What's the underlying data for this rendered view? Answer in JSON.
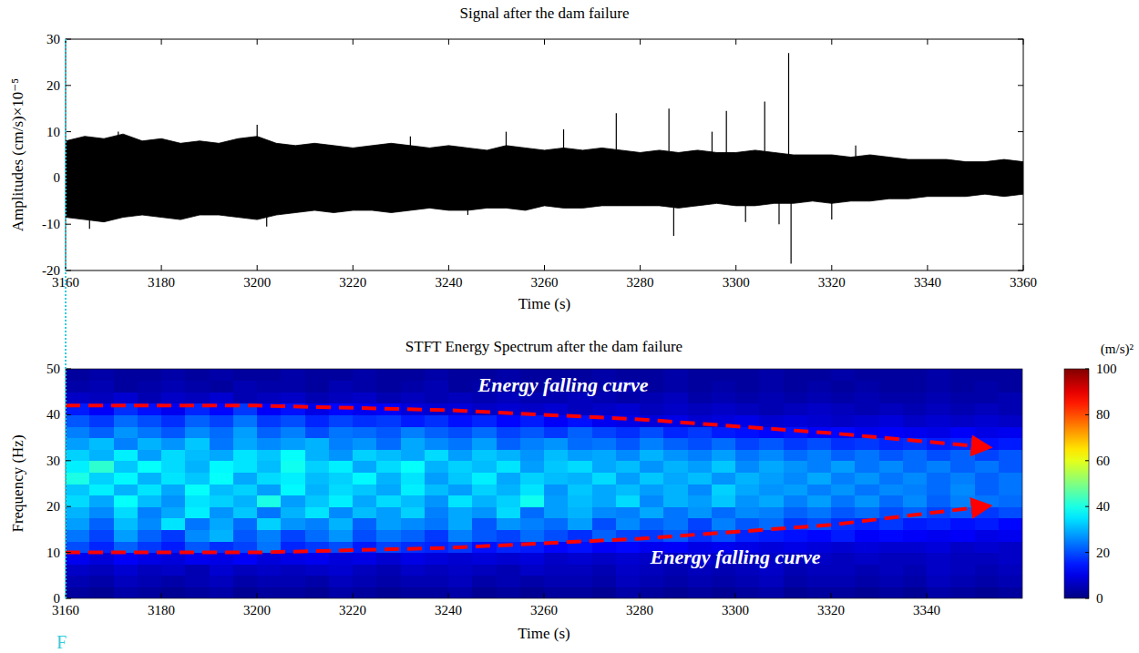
{
  "panel_label": "F",
  "chart_data": [
    {
      "type": "band",
      "title": "Signal after the dam failure",
      "x_label": "Time (s)",
      "y_label": "Amplitudes (cm/s)×10⁻⁵",
      "color": "#000000",
      "xlim": [
        3160,
        3360
      ],
      "xticks": [
        3160,
        3180,
        3200,
        3220,
        3240,
        3260,
        3280,
        3300,
        3320,
        3340,
        3360
      ],
      "ylim": [
        -20,
        30
      ],
      "yticks": [
        -20,
        -10,
        0,
        10,
        20,
        30
      ],
      "grid": false,
      "x": [
        3160,
        3164,
        3168,
        3172,
        3176,
        3180,
        3184,
        3188,
        3192,
        3196,
        3200,
        3204,
        3208,
        3212,
        3216,
        3220,
        3224,
        3228,
        3232,
        3236,
        3240,
        3244,
        3248,
        3252,
        3256,
        3260,
        3264,
        3268,
        3272,
        3276,
        3280,
        3284,
        3288,
        3292,
        3296,
        3300,
        3304,
        3308,
        3312,
        3316,
        3320,
        3324,
        3328,
        3332,
        3336,
        3340,
        3344,
        3348,
        3352,
        3356,
        3360
      ],
      "upper": [
        8,
        9,
        8.5,
        9.5,
        8,
        8.5,
        7.5,
        8,
        7.5,
        8.5,
        9,
        7.5,
        7,
        7.5,
        7,
        6.5,
        7,
        7.5,
        7,
        6.5,
        7,
        6.5,
        6,
        7,
        6.5,
        6,
        6.5,
        6,
        6.5,
        6,
        5.5,
        6,
        5.5,
        6,
        5.5,
        5.5,
        6,
        5.5,
        5,
        5,
        5,
        4.5,
        5,
        4.5,
        4,
        4,
        4,
        3.5,
        3.5,
        4,
        3.5
      ],
      "lower": [
        -8.5,
        -9,
        -9.5,
        -8.5,
        -8,
        -8.5,
        -9,
        -8,
        -8,
        -8.5,
        -9,
        -8,
        -7.5,
        -7,
        -7.5,
        -7,
        -7,
        -7.5,
        -7,
        -6.5,
        -7,
        -7,
        -6.5,
        -6.5,
        -7,
        -6,
        -6.5,
        -6.5,
        -6,
        -6,
        -6,
        -6,
        -6.5,
        -6,
        -5.5,
        -6,
        -6,
        -5.5,
        -5.5,
        -5,
        -5.5,
        -5,
        -5,
        -4.5,
        -4.5,
        -4,
        -4,
        -4,
        -3.5,
        -4,
        -3.5
      ],
      "spikes": {
        "x": [
          3165,
          3171,
          3200,
          3202,
          3232,
          3244,
          3252,
          3264,
          3275,
          3286,
          3287,
          3295,
          3298,
          3302,
          3306,
          3309,
          3311,
          3311.5,
          3320,
          3325
        ],
        "y": [
          -11,
          10,
          11.5,
          -10.5,
          9,
          -8,
          10,
          10.5,
          14,
          15,
          -12.5,
          10,
          14.5,
          -9.5,
          16.5,
          -10,
          27,
          -18.5,
          -9,
          7
        ]
      }
    },
    {
      "type": "heatmap",
      "title": "STFT Energy Spectrum after the dam failure",
      "x_label": "Time (s)",
      "y_label": "Frequency (Hz)",
      "xlim": [
        3160,
        3360
      ],
      "xticks": [
        3160,
        3180,
        3200,
        3220,
        3240,
        3260,
        3280,
        3300,
        3320,
        3340
      ],
      "ylim": [
        0,
        50
      ],
      "yticks": [
        0,
        10,
        20,
        30,
        40,
        50
      ],
      "grid": false,
      "x_bins": [
        3160,
        3165,
        3170,
        3175,
        3180,
        3185,
        3190,
        3195,
        3200,
        3205,
        3210,
        3215,
        3220,
        3225,
        3230,
        3235,
        3240,
        3245,
        3250,
        3255,
        3260,
        3265,
        3270,
        3275,
        3280,
        3285,
        3290,
        3295,
        3300,
        3305,
        3310,
        3315,
        3320,
        3325,
        3330,
        3335,
        3340,
        3345,
        3350,
        3355,
        3360
      ],
      "y_bins": [
        0,
        2.5,
        5,
        7.5,
        10,
        12.5,
        15,
        17.5,
        20,
        22.5,
        25,
        27.5,
        30,
        32.5,
        35,
        37.5,
        40,
        42.5,
        45,
        47.5,
        50
      ],
      "cells": [
        [
          3,
          2,
          4,
          3,
          2,
          3,
          4,
          2,
          3,
          3,
          2,
          4,
          3,
          2,
          3,
          3,
          4,
          2,
          3,
          2,
          3,
          3,
          2,
          4,
          3,
          2,
          3,
          2,
          3,
          4,
          2,
          3,
          3,
          2,
          3,
          2,
          4,
          3,
          2,
          3
        ],
        [
          5,
          4,
          6,
          5,
          4,
          5,
          6,
          4,
          5,
          5,
          4,
          6,
          5,
          4,
          5,
          5,
          6,
          4,
          5,
          4,
          5,
          5,
          4,
          6,
          5,
          4,
          5,
          4,
          5,
          6,
          4,
          5,
          5,
          4,
          5,
          4,
          6,
          5,
          4,
          5
        ],
        [
          7,
          6,
          8,
          6,
          7,
          5,
          8,
          6,
          7,
          6,
          7,
          8,
          6,
          5,
          7,
          6,
          7,
          6,
          5,
          7,
          6,
          6,
          5,
          7,
          6,
          5,
          6,
          5,
          6,
          7,
          5,
          6,
          6,
          5,
          6,
          5,
          7,
          6,
          5,
          6
        ],
        [
          11,
          9,
          12,
          10,
          9,
          11,
          10,
          12,
          9,
          10,
          11,
          9,
          10,
          8,
          10,
          9,
          8,
          9,
          8,
          9,
          7,
          8,
          7,
          8,
          7,
          6,
          8,
          7,
          6,
          7,
          6,
          7,
          6,
          7,
          6,
          6,
          7,
          6,
          6,
          7
        ],
        [
          20,
          16,
          22,
          18,
          15,
          21,
          17,
          19,
          24,
          16,
          18,
          20,
          15,
          19,
          17,
          16,
          18,
          14,
          16,
          15,
          13,
          14,
          12,
          13,
          11,
          12,
          10,
          11,
          10,
          9,
          10,
          9,
          8,
          9,
          8,
          8,
          9,
          7,
          8,
          7
        ],
        [
          24,
          19,
          28,
          22,
          18,
          26,
          30,
          21,
          25,
          19,
          23,
          27,
          20,
          24,
          22,
          18,
          25,
          21,
          19,
          23,
          20,
          17,
          22,
          19,
          18,
          21,
          17,
          20,
          16,
          15,
          14,
          13,
          15,
          12,
          13,
          12,
          11,
          12,
          10,
          11
        ],
        [
          28,
          22,
          31,
          26,
          35,
          24,
          29,
          23,
          33,
          27,
          25,
          30,
          22,
          28,
          26,
          24,
          29,
          21,
          27,
          25,
          23,
          28,
          20,
          26,
          22,
          24,
          19,
          25,
          21,
          23,
          18,
          20,
          17,
          16,
          18,
          15,
          16,
          14,
          15,
          13
        ],
        [
          30,
          26,
          34,
          25,
          29,
          36,
          27,
          32,
          24,
          30,
          35,
          26,
          31,
          28,
          33,
          25,
          29,
          27,
          34,
          23,
          28,
          30,
          26,
          25,
          29,
          24,
          27,
          23,
          26,
          25,
          22,
          24,
          21,
          23,
          20,
          22,
          19,
          21,
          18,
          20
        ],
        [
          34,
          29,
          38,
          31,
          27,
          35,
          33,
          30,
          40,
          28,
          32,
          36,
          29,
          34,
          31,
          27,
          35,
          30,
          33,
          39,
          28,
          31,
          29,
          34,
          26,
          30,
          28,
          32,
          27,
          29,
          25,
          28,
          24,
          27,
          23,
          26,
          22,
          25,
          24,
          23
        ],
        [
          32,
          36,
          30,
          35,
          29,
          38,
          31,
          33,
          28,
          37,
          30,
          34,
          32,
          29,
          36,
          31,
          28,
          33,
          30,
          35,
          27,
          32,
          29,
          31,
          28,
          30,
          26,
          33,
          29,
          27,
          28,
          25,
          27,
          24,
          26,
          25,
          23,
          26,
          22,
          24
        ],
        [
          40,
          33,
          37,
          30,
          35,
          32,
          38,
          29,
          34,
          36,
          31,
          33,
          37,
          30,
          35,
          28,
          32,
          36,
          29,
          33,
          31,
          30,
          34,
          28,
          32,
          29,
          31,
          27,
          30,
          28,
          26,
          29,
          25,
          27,
          24,
          26,
          23,
          25,
          22,
          24
        ],
        [
          36,
          42,
          32,
          38,
          34,
          30,
          37,
          35,
          31,
          39,
          33,
          36,
          29,
          34,
          38,
          30,
          33,
          31,
          35,
          28,
          32,
          34,
          29,
          31,
          27,
          30,
          28,
          32,
          26,
          29,
          27,
          25,
          28,
          24,
          26,
          23,
          25,
          22,
          24,
          21
        ],
        [
          33,
          30,
          36,
          28,
          34,
          31,
          29,
          35,
          32,
          38,
          30,
          27,
          33,
          31,
          29,
          34,
          28,
          32,
          30,
          27,
          31,
          28,
          29,
          26,
          30,
          27,
          25,
          28,
          24,
          26,
          23,
          25,
          22,
          24,
          21,
          23,
          20,
          22,
          19,
          21
        ],
        [
          28,
          31,
          25,
          30,
          27,
          32,
          24,
          29,
          26,
          28,
          30,
          25,
          27,
          23,
          29,
          26,
          24,
          28,
          22,
          25,
          27,
          23,
          24,
          21,
          25,
          22,
          20,
          23,
          19,
          21,
          18,
          20,
          17,
          18,
          16,
          17,
          15,
          16,
          14,
          15
        ],
        [
          25,
          22,
          27,
          24,
          21,
          26,
          23,
          28,
          22,
          25,
          20,
          24,
          23,
          21,
          25,
          22,
          20,
          23,
          19,
          21,
          18,
          22,
          19,
          17,
          20,
          16,
          18,
          15,
          14,
          13,
          14,
          12,
          13,
          11,
          12,
          11,
          10,
          12,
          10,
          11
        ],
        [
          21,
          18,
          23,
          20,
          17,
          22,
          19,
          24,
          18,
          20,
          16,
          19,
          17,
          18,
          15,
          17,
          14,
          16,
          13,
          15,
          12,
          14,
          11,
          10,
          9,
          10,
          8,
          9,
          10,
          8,
          9,
          8,
          7,
          8,
          9,
          7,
          8,
          7,
          8,
          7
        ],
        [
          15,
          12,
          17,
          14,
          11,
          16,
          13,
          18,
          12,
          14,
          10,
          13,
          11,
          12,
          9,
          8,
          9,
          7,
          8,
          7,
          8,
          6,
          7,
          8,
          6,
          7,
          6,
          7,
          6,
          5,
          6,
          7,
          6,
          5,
          6,
          5,
          6,
          5,
          6,
          5
        ],
        [
          7,
          6,
          8,
          5,
          7,
          6,
          8,
          5,
          6,
          7,
          5,
          6,
          7,
          5,
          6,
          5,
          6,
          5,
          6,
          5,
          5,
          6,
          5,
          4,
          5,
          6,
          4,
          5,
          4,
          5,
          4,
          5,
          4,
          5,
          4,
          4,
          5,
          4,
          4,
          5
        ],
        [
          4,
          5,
          3,
          4,
          5,
          4,
          3,
          5,
          4,
          4,
          3,
          5,
          4,
          3,
          4,
          5,
          3,
          4,
          4,
          3,
          4,
          3,
          4,
          5,
          3,
          4,
          3,
          4,
          3,
          4,
          3,
          4,
          3,
          4,
          3,
          3,
          4,
          3,
          4,
          3
        ],
        [
          3,
          4,
          3,
          3,
          4,
          3,
          4,
          3,
          3,
          4,
          3,
          3,
          4,
          3,
          3,
          4,
          3,
          3,
          4,
          3,
          3,
          3,
          4,
          3,
          3,
          4,
          3,
          3,
          3,
          4,
          3,
          3,
          4,
          3,
          3,
          3,
          4,
          3,
          3,
          3
        ]
      ],
      "colorbar": {
        "range": [
          0,
          100
        ],
        "ticks": [
          0,
          20,
          40,
          60,
          80,
          100
        ],
        "label": "(m/s)²"
      },
      "annotations": [
        {
          "text": "Energy falling curve",
          "color": "#ff0000",
          "x": [
            3160,
            3200,
            3240,
            3280,
            3320,
            3352
          ],
          "y": [
            42,
            42,
            41,
            39,
            36,
            33
          ]
        },
        {
          "text": "Energy falling curve",
          "color": "#ff0000",
          "x": [
            3160,
            3200,
            3240,
            3280,
            3320,
            3352
          ],
          "y": [
            10,
            10,
            11,
            13,
            16,
            20
          ]
        }
      ]
    }
  ]
}
